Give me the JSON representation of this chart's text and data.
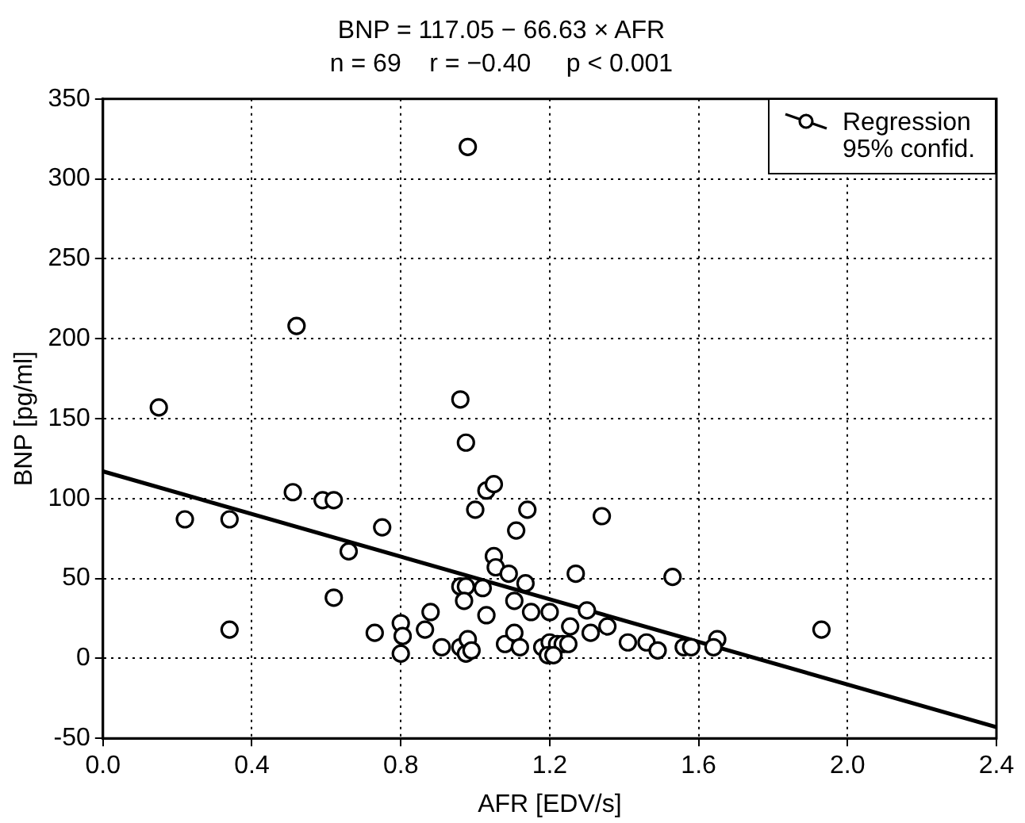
{
  "chart_data": {
    "type": "scatter",
    "title": "BNP = 117.05 − 66.63 × AFR",
    "subtitle": "n = 69    r = −0.40     p < 0.001",
    "xlabel": "AFR [EDV/s]",
    "ylabel": "BNP [pg/ml]",
    "xlim": [
      0,
      2.4
    ],
    "xticks": [
      {
        "value": 0,
        "label": "0.0"
      },
      0.4,
      0.8,
      1.2,
      1.6,
      {
        "value": 2,
        "label": "2.0"
      },
      2.4
    ],
    "ylim": [
      -50,
      350
    ],
    "yticks": [
      -50,
      0,
      50,
      100,
      150,
      200,
      250,
      300,
      350
    ],
    "grid": true,
    "legend": "top right",
    "series": [
      {
        "name": "Regression 95% confid.",
        "marker": "circle",
        "color": "#000000",
        "x": [
          0.98,
          0.52,
          0.15,
          0.96,
          0.975,
          0.51,
          0.59,
          0.62,
          0.22,
          0.34,
          1.03,
          1.05,
          1.0,
          1.14,
          1.11,
          0.75,
          0.66,
          1.05,
          1.055,
          1.09,
          1.135,
          0.96,
          0.975,
          1.02,
          0.97,
          1.105,
          0.62,
          1.15,
          0.88,
          1.03,
          0.34,
          0.73,
          0.8,
          0.805,
          0.865,
          0.8,
          0.91,
          0.96,
          0.98,
          0.975,
          0.99,
          1.08,
          1.105,
          1.12,
          1.18,
          1.34,
          1.27,
          1.53,
          1.2,
          1.3,
          1.255,
          1.31,
          1.355,
          1.2,
          1.22,
          1.235,
          1.25,
          1.195,
          1.21,
          1.41,
          1.46,
          1.49,
          1.56,
          1.58,
          1.65,
          1.64,
          1.93
        ],
        "values": [
          320,
          208,
          157,
          162,
          135,
          104,
          99,
          99,
          87,
          87,
          105,
          109,
          93,
          93,
          80,
          82,
          67,
          64,
          57,
          53,
          47,
          45,
          45,
          44,
          36,
          36,
          38,
          29,
          29,
          27,
          18,
          16,
          22,
          14,
          18,
          3,
          7,
          7,
          12,
          3,
          5,
          9,
          16,
          7,
          7,
          89,
          53,
          51,
          29,
          30,
          20,
          16,
          20,
          10,
          9,
          9,
          9,
          2,
          2,
          10,
          10,
          5,
          7,
          7,
          12,
          7,
          18
        ]
      },
      {
        "type": "line",
        "color": "#000000",
        "line_style": "solid",
        "x": [
          0,
          2.4
        ],
        "values": [
          117,
          -43
        ]
      }
    ]
  }
}
